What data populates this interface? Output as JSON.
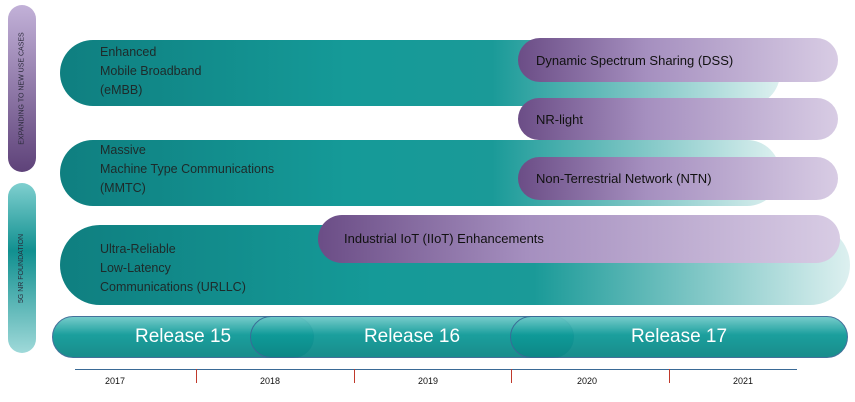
{
  "side_labels": {
    "top": "EXPANDING TO NEW USE CASES",
    "bottom": "5G NR FOUNDATION"
  },
  "foundation": [
    {
      "lines": [
        "Enhanced",
        "Mobile Broadband",
        "(eMBB)"
      ]
    },
    {
      "lines": [
        "Massive",
        "Machine Type Communications",
        "(MMTC)"
      ]
    },
    {
      "lines": [
        "Ultra-Reliable",
        "Low-Latency",
        "Communications (URLLC)"
      ]
    }
  ],
  "new_use_cases": [
    "Dynamic Spectrum Sharing (DSS)",
    "NR-light",
    "Non-Terrestrial Network (NTN)",
    "Industrial IoT (IIoT) Enhancements"
  ],
  "releases": [
    "Release 15",
    "Release 16",
    "Release 17"
  ],
  "years": [
    "2017",
    "2018",
    "2019",
    "2020",
    "2021"
  ],
  "colors": {
    "teal": "#159a98",
    "purple": "#6b4d86"
  }
}
